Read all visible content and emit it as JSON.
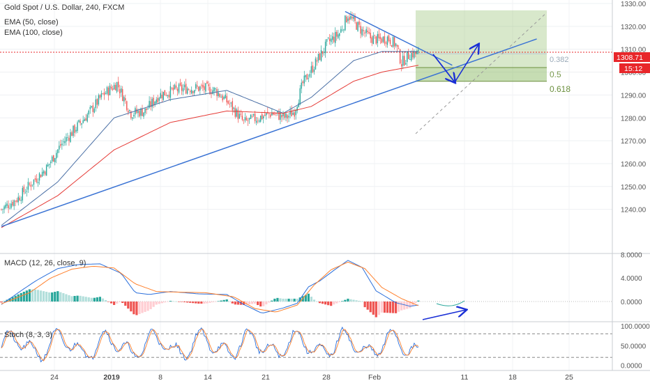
{
  "header": {
    "symbol": "Gold Spot / U.S. Dollar, 240, FXCM",
    "ema50": "EMA (50, close)",
    "ema100": "EMA (100, close)"
  },
  "price_tag": {
    "value": "1308.71",
    "countdown": "15:12",
    "color": "#e8262a"
  },
  "fib_labels": {
    "f382": "0.382",
    "f5": "0.5",
    "f618": "0.618"
  },
  "indicators": {
    "macd_title": "MACD (12, 26, close, 9)",
    "stoch_title": "Stoch (8, 3, 3)"
  },
  "colors": {
    "up": "#26a69a",
    "down": "#ef5350",
    "ema50": "#4a6fa5",
    "ema100": "#e53935",
    "trend": "#3a73d4",
    "arrow": "#1a2fd6",
    "macd": "#2a6fdb",
    "signal": "#ff7f2a",
    "fib_box": "#8fbc6a"
  },
  "chart_data": [
    {
      "type": "candlestick",
      "title": "Gold Spot / U.S. Dollar, 240, FXCM",
      "ylim": [
        1230,
        1330
      ],
      "y_ticks": [
        "1330.00",
        "1320.00",
        "1310.00",
        "1300.00",
        "1290.00",
        "1280.00",
        "1270.00",
        "1260.00",
        "1250.00",
        "1240.00"
      ],
      "x_ticks": [
        "24",
        "2019",
        "8",
        "14",
        "21",
        "28",
        "Feb",
        "11",
        "18",
        "25"
      ],
      "close_anchors": [
        [
          0,
          1240
        ],
        [
          12,
          1245
        ],
        [
          22,
          1252
        ],
        [
          32,
          1258
        ],
        [
          42,
          1268
        ],
        [
          52,
          1275
        ],
        [
          62,
          1282
        ],
        [
          72,
          1290
        ],
        [
          82,
          1295
        ],
        [
          92,
          1282
        ],
        [
          102,
          1283
        ],
        [
          112,
          1290
        ],
        [
          122,
          1292
        ],
        [
          132,
          1293
        ],
        [
          142,
          1293
        ],
        [
          152,
          1292
        ],
        [
          162,
          1286
        ],
        [
          172,
          1278
        ],
        [
          182,
          1280
        ],
        [
          192,
          1282
        ],
        [
          202,
          1280
        ],
        [
          208,
          1283
        ],
        [
          214,
          1295
        ],
        [
          222,
          1303
        ],
        [
          232,
          1313
        ],
        [
          240,
          1317
        ],
        [
          246,
          1325
        ],
        [
          250,
          1322
        ],
        [
          256,
          1318
        ],
        [
          262,
          1315
        ],
        [
          268,
          1314
        ],
        [
          274,
          1315
        ],
        [
          280,
          1312
        ],
        [
          284,
          1304
        ],
        [
          290,
          1308
        ],
        [
          296,
          1308
        ]
      ],
      "series": [
        {
          "name": "EMA (50, close)",
          "values_at": [
            [
              0,
              1233
            ],
            [
              40,
              1252
            ],
            [
              80,
              1280
            ],
            [
              120,
              1288
            ],
            [
              160,
              1292
            ],
            [
              200,
              1282
            ],
            [
              220,
              1289
            ],
            [
              250,
              1305
            ],
            [
              270,
              1309
            ],
            [
              296,
              1309
            ]
          ]
        },
        {
          "name": "EMA (100, close)",
          "values_at": [
            [
              0,
              1232
            ],
            [
              40,
              1246
            ],
            [
              80,
              1266
            ],
            [
              120,
              1278
            ],
            [
              160,
              1283
            ],
            [
              200,
              1282
            ],
            [
              220,
              1285
            ],
            [
              250,
              1296
            ],
            [
              270,
              1300
            ],
            [
              296,
              1303
            ]
          ]
        }
      ],
      "trendlines": [
        {
          "from": [
            0,
            1232.5
          ],
          "to": [
            380,
            1314.5
          ]
        },
        {
          "from": [
            244,
            1326.5
          ],
          "to": [
            320,
            1303
          ]
        }
      ],
      "fib_levels": {
        "0.382": 1308,
        "0.5": 1302,
        "0.618": 1296,
        "top": 1327
      },
      "last_price": 1308.71
    },
    {
      "type": "line",
      "title": "MACD (12, 26, close, 9)",
      "ylim": [
        -3,
        8
      ],
      "y_ticks": [
        "8.0000",
        "4.0000",
        "0.0000"
      ],
      "series": [
        {
          "name": "MACD",
          "values_at": [
            [
              0,
              -0.5
            ],
            [
              15,
              2
            ],
            [
              25,
              3.6
            ],
            [
              40,
              5.6
            ],
            [
              55,
              6.3
            ],
            [
              70,
              6.4
            ],
            [
              85,
              4.8
            ],
            [
              95,
              1.5
            ],
            [
              105,
              1.2
            ],
            [
              120,
              1.7
            ],
            [
              140,
              1.3
            ],
            [
              160,
              1.2
            ],
            [
              172,
              -0.5
            ],
            [
              185,
              -2.0
            ],
            [
              200,
              -1.1
            ],
            [
              210,
              -0.3
            ],
            [
              218,
              2.5
            ],
            [
              226,
              3.5
            ],
            [
              236,
              5.3
            ],
            [
              246,
              7.0
            ],
            [
              256,
              5.8
            ],
            [
              266,
              1.8
            ],
            [
              280,
              -0.2
            ],
            [
              290,
              -0.8
            ],
            [
              296,
              -0.6
            ]
          ]
        },
        {
          "name": "Signal",
          "values_at": [
            [
              0,
              -0.4
            ],
            [
              20,
              1.5
            ],
            [
              35,
              4.0
            ],
            [
              50,
              5.5
            ],
            [
              65,
              6.0
            ],
            [
              80,
              5.7
            ],
            [
              95,
              3.0
            ],
            [
              110,
              1.7
            ],
            [
              125,
              1.6
            ],
            [
              145,
              1.5
            ],
            [
              165,
              0.8
            ],
            [
              180,
              -1.2
            ],
            [
              195,
              -1.8
            ],
            [
              210,
              -0.6
            ],
            [
              222,
              2.8
            ],
            [
              234,
              5.4
            ],
            [
              246,
              6.7
            ],
            [
              258,
              5.6
            ],
            [
              270,
              2.4
            ],
            [
              284,
              0.5
            ],
            [
              296,
              -0.7
            ]
          ]
        }
      ]
    },
    {
      "type": "line",
      "title": "Stoch (8, 3, 3)",
      "ylim": [
        0,
        100
      ],
      "y_ticks": [
        "100.0000",
        "50.0000",
        "0.0000"
      ],
      "bands": [
        80,
        20
      ]
    }
  ]
}
